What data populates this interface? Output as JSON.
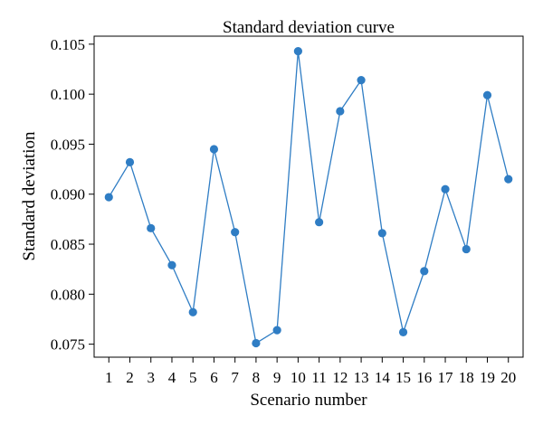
{
  "chart_data": {
    "type": "line",
    "title": "Standard deviation curve",
    "xlabel": "Scenario number",
    "ylabel": "Standard deviation",
    "x": [
      1,
      2,
      3,
      4,
      5,
      6,
      7,
      8,
      9,
      10,
      11,
      12,
      13,
      14,
      15,
      16,
      17,
      18,
      19,
      20
    ],
    "series": [
      {
        "values": [
          0.0897,
          0.0932,
          0.0866,
          0.0829,
          0.0782,
          0.0945,
          0.0862,
          0.0751,
          0.0764,
          0.1043,
          0.0872,
          0.0983,
          0.1014,
          0.0861,
          0.0762,
          0.0823,
          0.0905,
          0.0845,
          0.0999,
          0.0915
        ]
      }
    ],
    "xlim": [
      0.3,
      20.7
    ],
    "ylim": [
      0.0737,
      0.1058
    ],
    "xticks": [
      "1",
      "2",
      "3",
      "4",
      "5",
      "6",
      "7",
      "8",
      "9",
      "10",
      "11",
      "12",
      "13",
      "14",
      "15",
      "16",
      "17",
      "18",
      "19",
      "20"
    ],
    "yticks": [
      "0.075",
      "0.080",
      "0.085",
      "0.090",
      "0.095",
      "0.100",
      "0.105"
    ],
    "grid": false,
    "colors": {
      "line": "#2f7dc4",
      "marker": "#2f7dc4",
      "axis": "#000000"
    }
  }
}
